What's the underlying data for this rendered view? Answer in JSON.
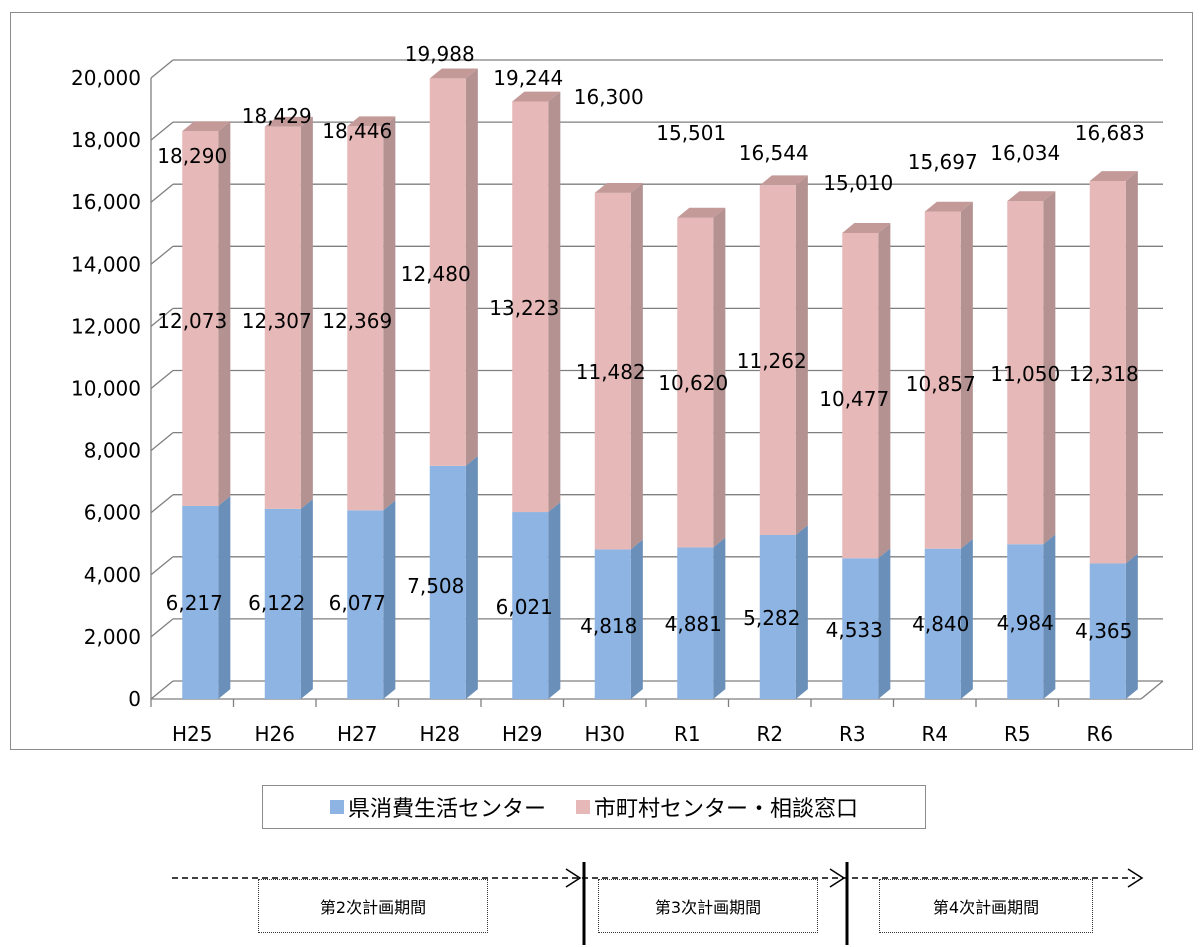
{
  "chart_data": {
    "type": "bar",
    "stacked": true,
    "categories": [
      "H25",
      "H26",
      "H27",
      "H28",
      "H29",
      "H30",
      "R1",
      "R2",
      "R3",
      "R4",
      "R5",
      "R6"
    ],
    "series": [
      {
        "name": "県消費生活センター",
        "color": "#8db4e2",
        "values": [
          6217,
          6122,
          6077,
          7508,
          6021,
          4818,
          4881,
          5282,
          4533,
          4840,
          4984,
          4365
        ]
      },
      {
        "name": "市町村センター・相談窓口",
        "color": "#e6b9b8",
        "values": [
          12073,
          12307,
          12369,
          12480,
          13223,
          11482,
          10620,
          11262,
          10477,
          10857,
          11050,
          12318
        ]
      }
    ],
    "value_labels": [
      [
        "6,217",
        "6,122",
        "6,077",
        "7,508",
        "6,021",
        "4,818",
        "4,881",
        "5,282",
        "4,533",
        "4,840",
        "4,984",
        "4,365"
      ],
      [
        "12,073",
        "12,307",
        "12,369",
        "12,480",
        "13,223",
        "11,482",
        "10,620",
        "11,262",
        "10,477",
        "10,857",
        "11,050",
        "12,318"
      ]
    ],
    "totals": [
      18290,
      18429,
      18446,
      19988,
      19244,
      16300,
      15501,
      16544,
      15010,
      15697,
      16034,
      16683
    ],
    "total_labels": [
      "18,290",
      "18,429",
      "18,446",
      "19,988",
      "19,244",
      "16,300",
      "15,501",
      "16,544",
      "15,010",
      "15,697",
      "16,034",
      "16,683"
    ],
    "y_ticks": [
      "0",
      "2,000",
      "4,000",
      "6,000",
      "8,000",
      "10,000",
      "12,000",
      "14,000",
      "16,000",
      "18,000",
      "20,000"
    ],
    "ylim": [
      0,
      20000
    ],
    "grid": true,
    "legend_position": "bottom"
  },
  "periods": [
    {
      "label": "第2次計画期間"
    },
    {
      "label": "第3次計画期間"
    },
    {
      "label": "第4次計画期間"
    }
  ]
}
